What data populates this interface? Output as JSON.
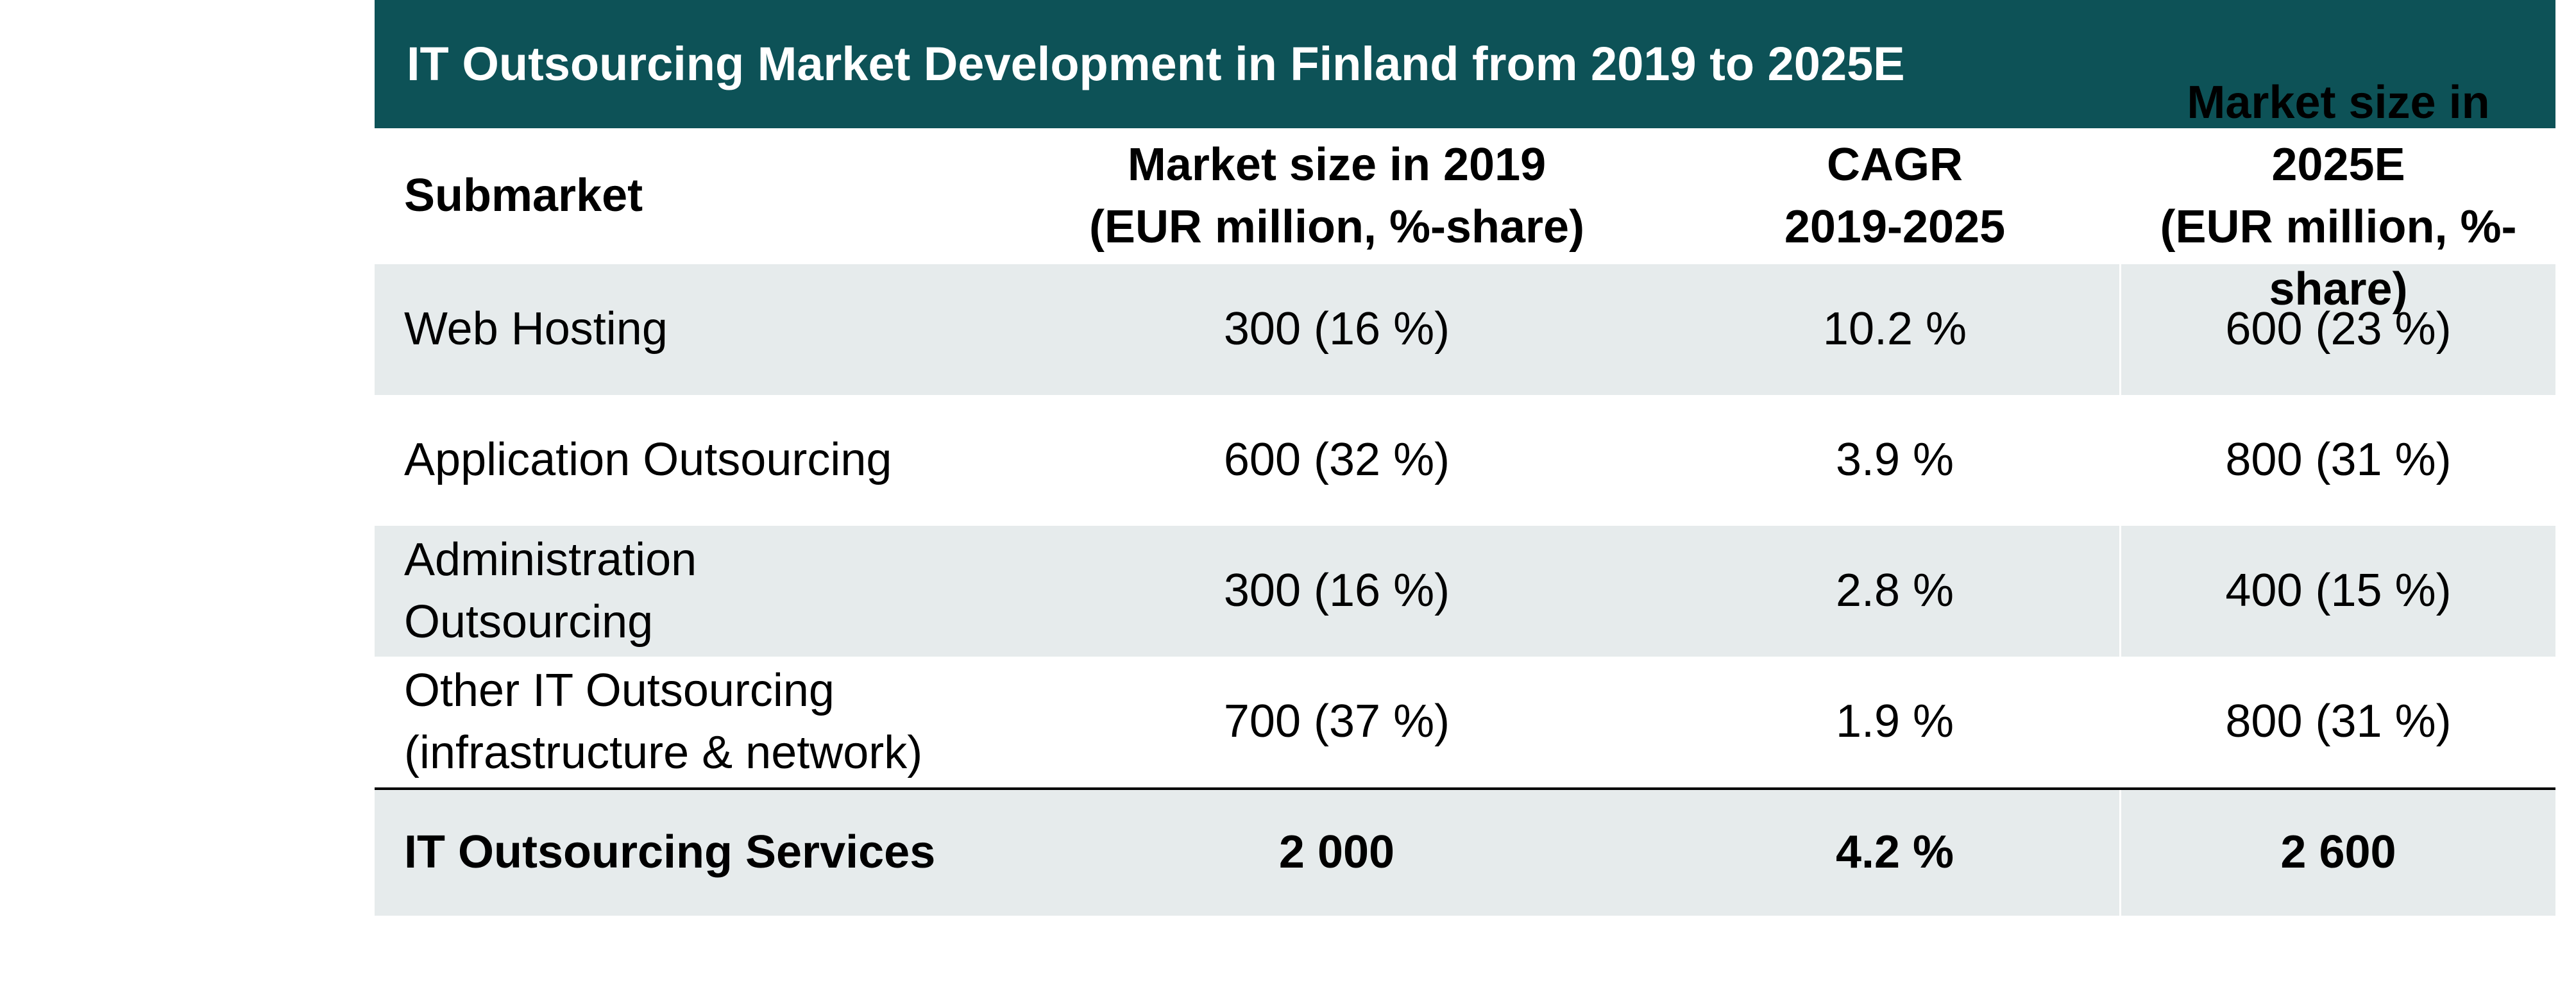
{
  "chart_data": {
    "type": "table",
    "title": "IT Outsourcing Market Development in Finland from 2019 to 2025E",
    "columns": [
      {
        "line1": "Submarket",
        "line2": ""
      },
      {
        "line1": "Market size in 2019",
        "line2": "(EUR million, %-share)"
      },
      {
        "line1": "CAGR",
        "line2": "2019-2025"
      },
      {
        "line1": "Market size in 2025E",
        "line2": "(EUR million, %-share)"
      }
    ],
    "rows": [
      {
        "name_line1": "Web Hosting",
        "name_line2": "",
        "size_2019": "300 (16 %)",
        "cagr": "10.2 %",
        "size_2025": "600 (23 %)"
      },
      {
        "name_line1": "Application Outsourcing",
        "name_line2": "",
        "size_2019": "600 (32 %)",
        "cagr": "3.9 %",
        "size_2025": "800 (31 %)"
      },
      {
        "name_line1": "Administration",
        "name_line2": "Outsourcing",
        "size_2019": "300 (16 %)",
        "cagr": "2.8 %",
        "size_2025": "400 (15 %)"
      },
      {
        "name_line1": "Other IT Outsourcing",
        "name_line2": "(infrastructure & network)",
        "size_2019": "700 (37 %)",
        "cagr": "1.9 %",
        "size_2025": "800 (31 %)"
      }
    ],
    "total": {
      "name": "IT Outsourcing Services",
      "size_2019": "2 000",
      "cagr": "4.2 %",
      "size_2025": "2 600"
    }
  },
  "colors": {
    "title_bar": "#0d5257",
    "shaded_row": "#e6ebec"
  }
}
